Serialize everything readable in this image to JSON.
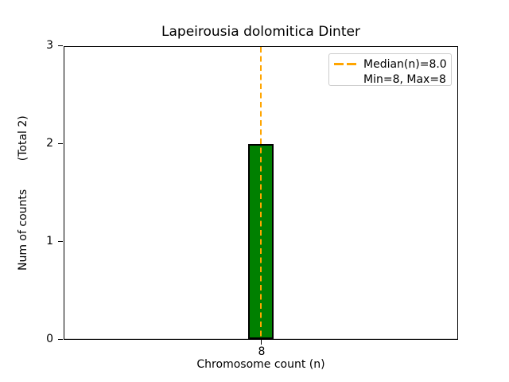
{
  "chart_data": {
    "type": "bar",
    "title": "Lapeirousia dolomitica Dinter",
    "xlabel": "Chromosome count (n)",
    "ylabel": "Num of counts        (Total 2)",
    "categories": [
      "8"
    ],
    "values": [
      2
    ],
    "total_counts": 2,
    "median_n": 8.0,
    "min_n": 8,
    "max_n": 8,
    "ylim": [
      0,
      3
    ],
    "ytick_labels": [
      "0",
      "1",
      "2",
      "3"
    ],
    "xtick_labels": [
      "8"
    ],
    "grid": false,
    "legend_position": "upper right",
    "legend": {
      "entries": [
        {
          "label": "Median(n)=8.0",
          "marker": "orange-dashed-line"
        },
        {
          "label": "Min=8, Max=8",
          "marker": "none"
        }
      ]
    },
    "colors": {
      "bar_fill": "#008000",
      "bar_edge": "#000000",
      "median_line": "#FFA500",
      "axis": "#000000",
      "baseline_gray": "#d9d9d9",
      "legend_border": "#cccccc"
    }
  }
}
